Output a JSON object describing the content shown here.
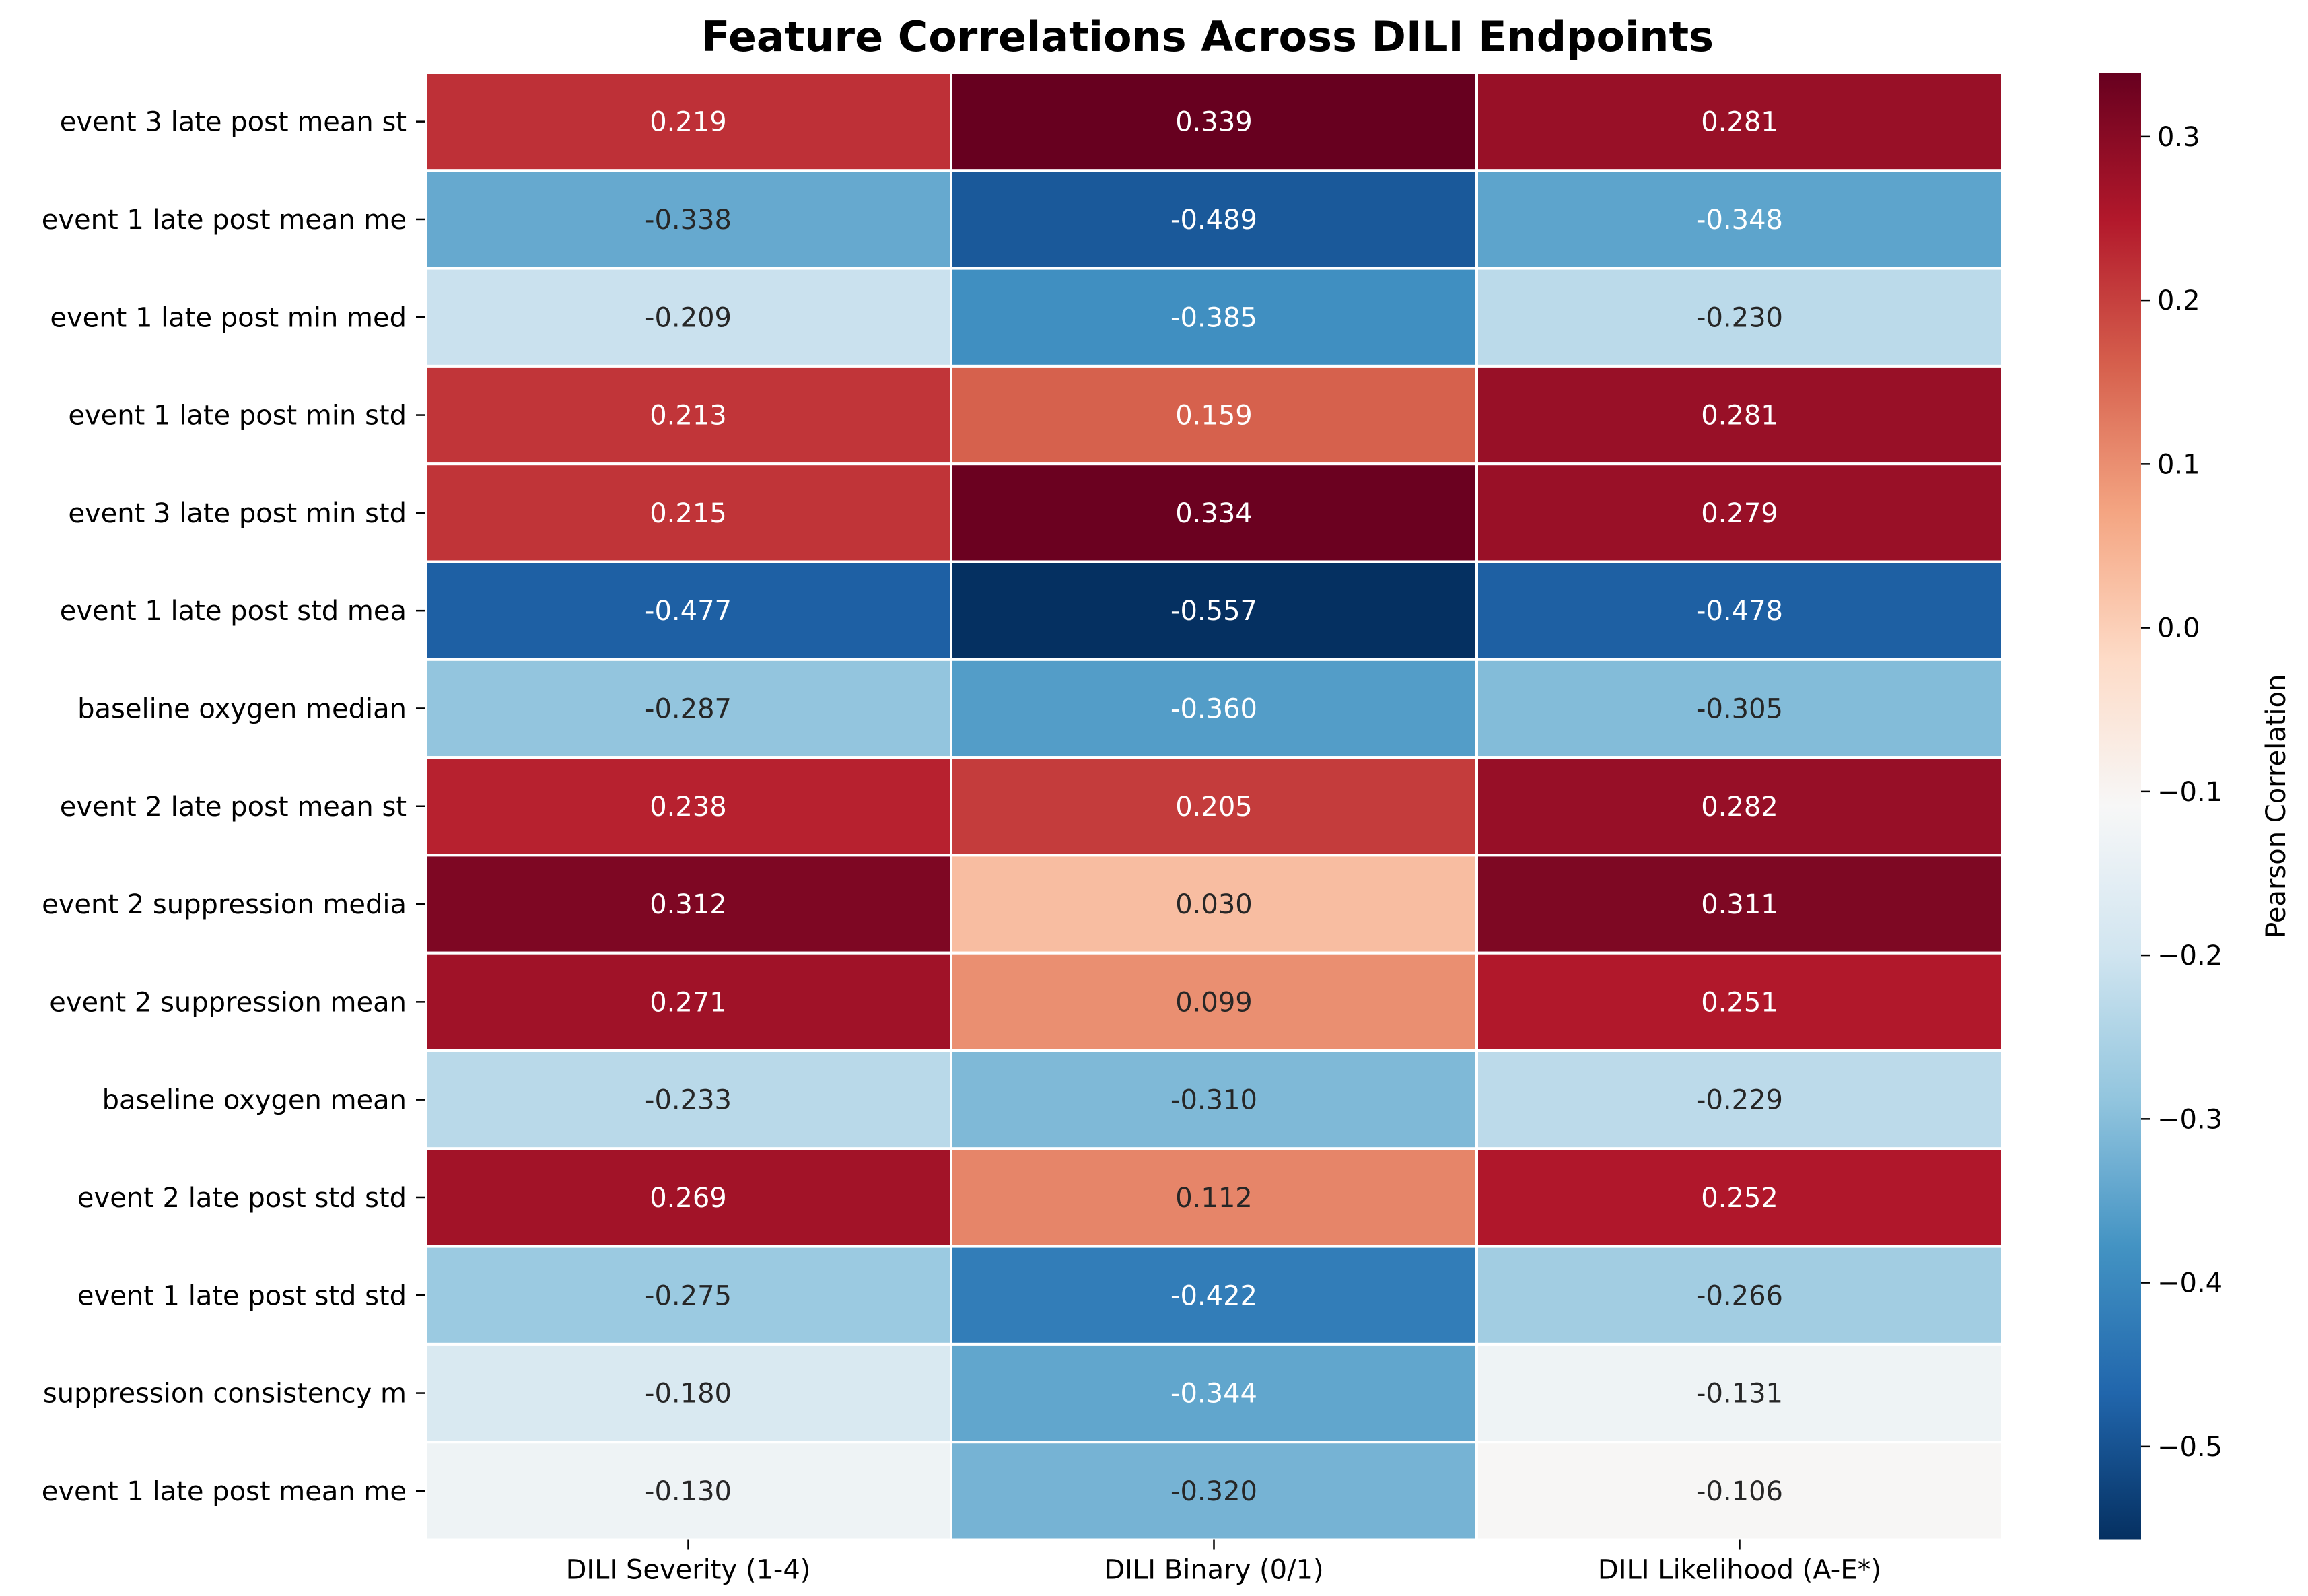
{
  "chart_data": {
    "type": "heatmap",
    "title": "Feature Correlations Across DILI Endpoints",
    "xlabel": "",
    "ylabel": "",
    "columns": [
      "DILI Severity (1-4)",
      "DILI Binary (0/1)",
      "DILI Likelihood (A-E*)"
    ],
    "rows": [
      "event 3 late post mean st",
      "event 1 late post mean me",
      "event 1 late post min med",
      "event 1 late post min std",
      "event 3 late post min std",
      "event 1 late post std mea",
      "baseline oxygen median",
      "event 2 late post mean st",
      "event 2 suppression media",
      "event 2 suppression mean",
      "baseline oxygen mean",
      "event 2 late post std std",
      "event 1 late post std std",
      "suppression consistency m",
      "event 1 late post mean me"
    ],
    "values": [
      [
        0.219,
        0.339,
        0.281
      ],
      [
        -0.338,
        -0.489,
        -0.348
      ],
      [
        -0.209,
        -0.385,
        -0.23
      ],
      [
        0.213,
        0.159,
        0.281
      ],
      [
        0.215,
        0.334,
        0.279
      ],
      [
        -0.477,
        -0.557,
        -0.478
      ],
      [
        -0.287,
        -0.36,
        -0.305
      ],
      [
        0.238,
        0.205,
        0.282
      ],
      [
        0.312,
        0.03,
        0.311
      ],
      [
        0.271,
        0.099,
        0.251
      ],
      [
        -0.233,
        -0.31,
        -0.229
      ],
      [
        0.269,
        0.112,
        0.252
      ],
      [
        -0.275,
        -0.422,
        -0.266
      ],
      [
        -0.18,
        -0.344,
        -0.131
      ],
      [
        -0.13,
        -0.32,
        -0.106
      ]
    ],
    "colorbar": {
      "label": "Pearson Correlation",
      "vmin": -0.557,
      "vmax": 0.339,
      "colormap": "RdBu_r",
      "ticks": [
        0.3,
        0.2,
        0.1,
        0.0,
        -0.1,
        -0.2,
        -0.3,
        -0.4,
        -0.5
      ],
      "tick_labels": [
        "0.3",
        "0.2",
        "0.1",
        "0.0",
        "−0.1",
        "−0.2",
        "−0.3",
        "−0.4",
        "−0.5"
      ]
    },
    "grid": false,
    "legend": "colorbar-right"
  }
}
